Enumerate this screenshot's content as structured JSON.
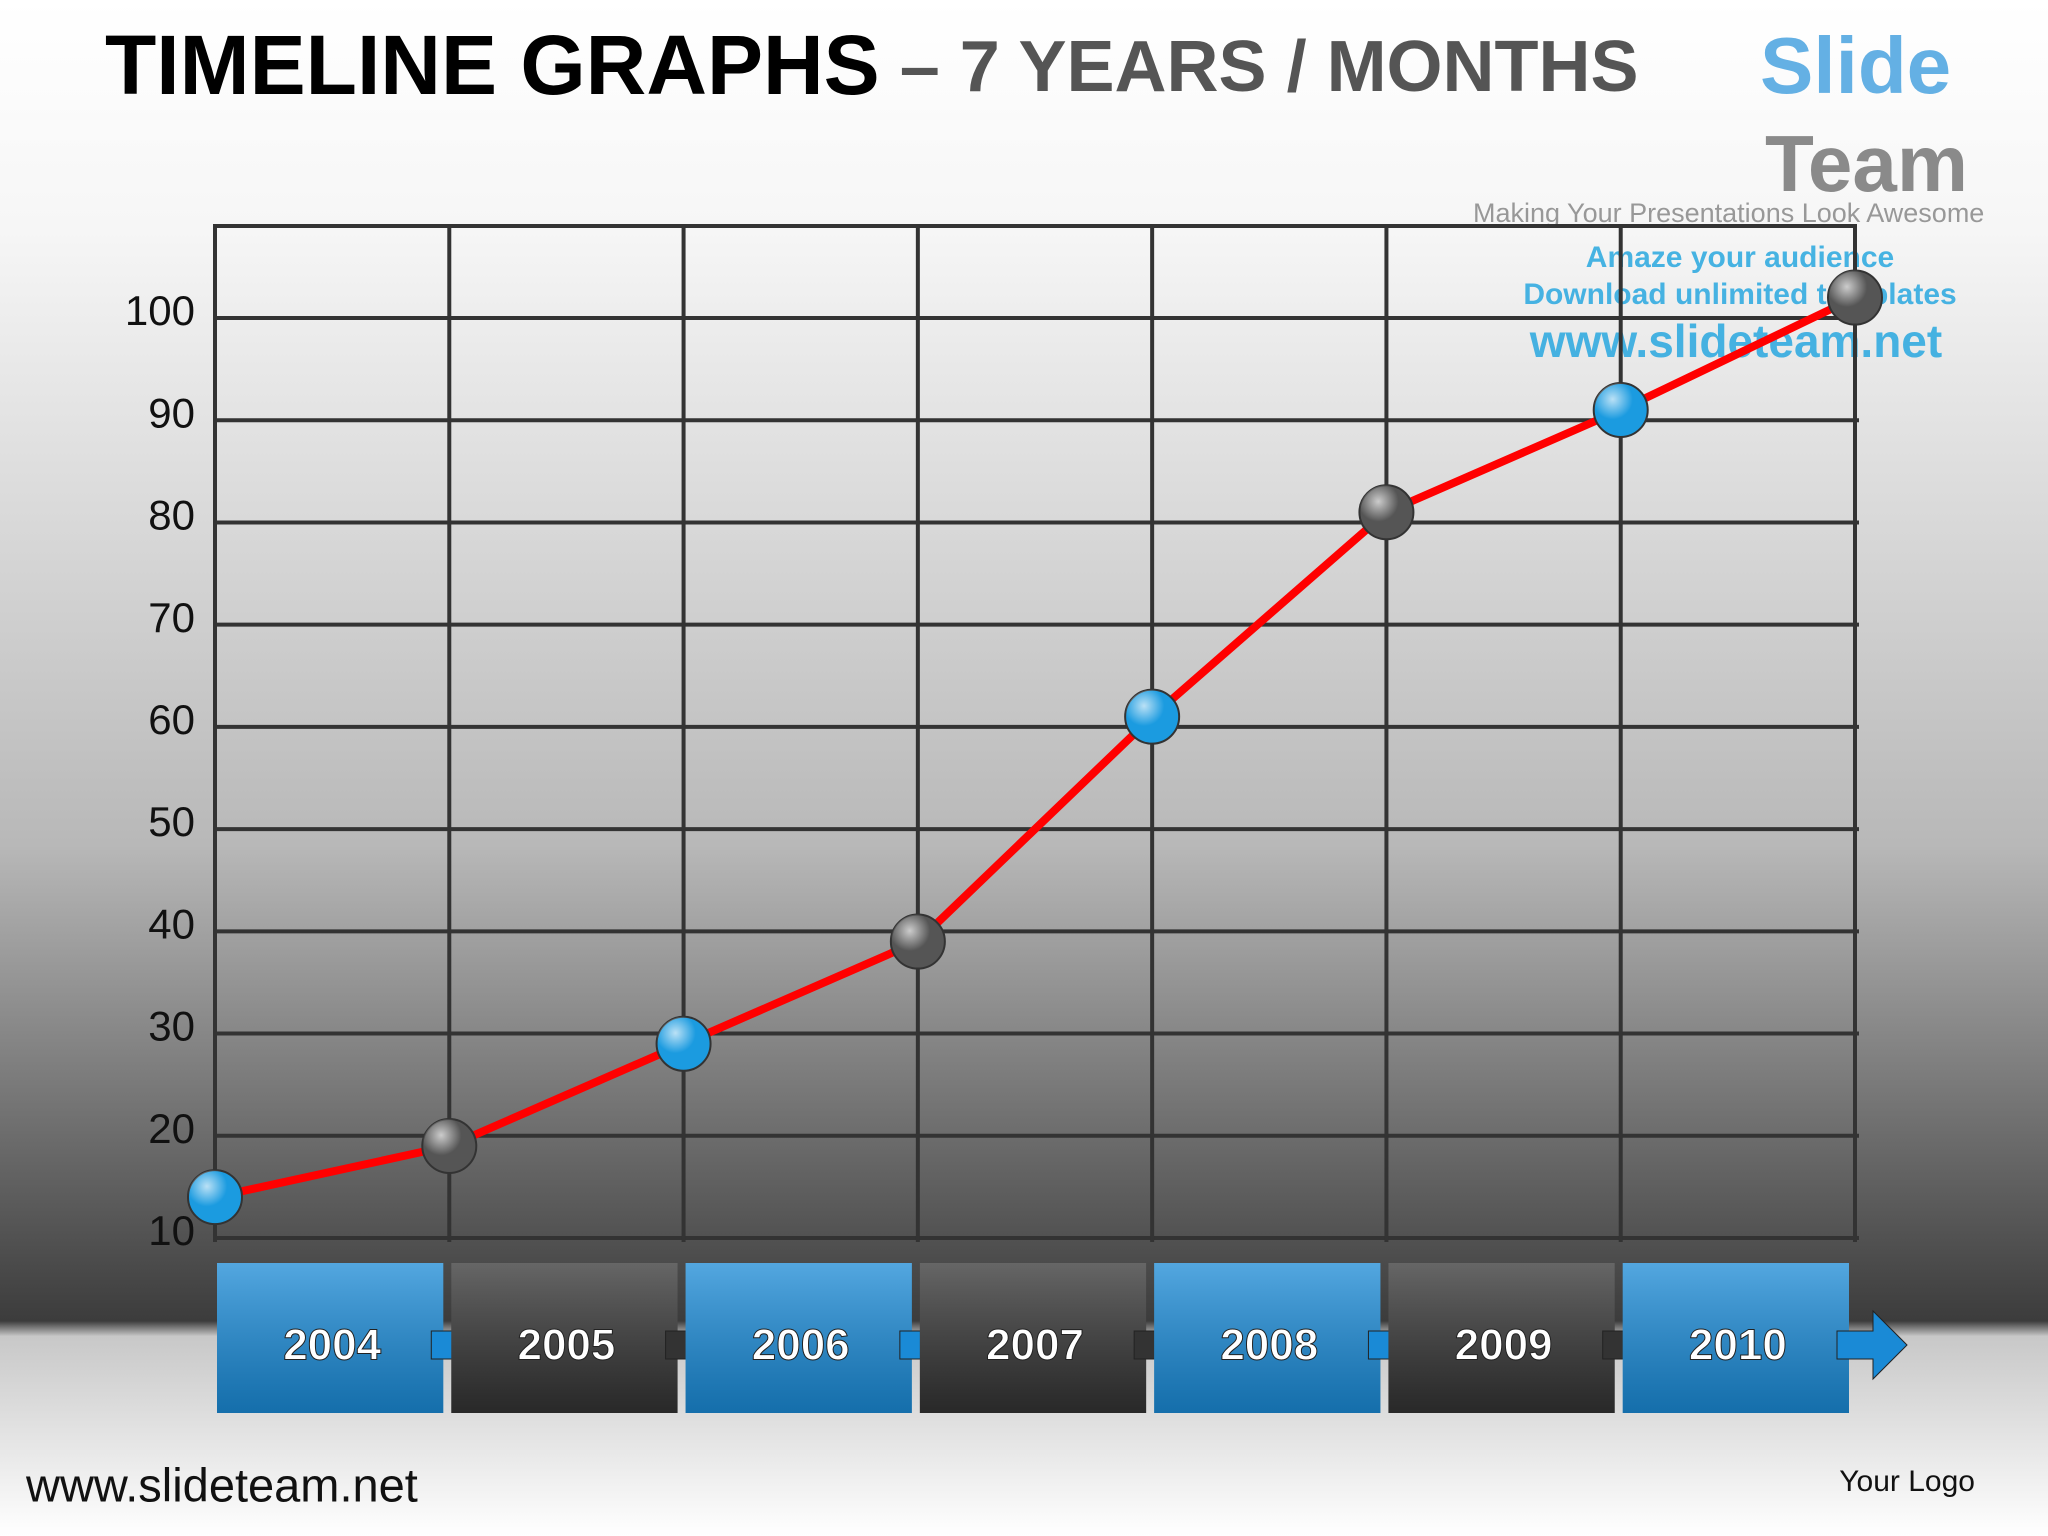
{
  "title_main": "TIMELINE  GRAPHS",
  "title_sub": "– 7 YEARS / MONTHS",
  "watermark": {
    "brand1": "Slide",
    "brand2": "Team",
    "tagline": "Making Your Presentations Look Awesome",
    "line1": "Amaze your audience",
    "line2": "Download unlimited templates",
    "url": "www.slideteam.net"
  },
  "footer": {
    "url": "www.slideteam.net",
    "logo": "Your Logo"
  },
  "chart_data": {
    "type": "line",
    "x": [
      0,
      1,
      2,
      3,
      4,
      5,
      6,
      7
    ],
    "xlim": [
      0,
      7
    ],
    "values": [
      14,
      19,
      29,
      39,
      61,
      81,
      91,
      102
    ],
    "color": "#ff0000",
    "marker_colors": [
      "#1b9be0",
      "#555555"
    ],
    "ylim": [
      10,
      109
    ],
    "yticks": [
      10,
      20,
      30,
      40,
      50,
      60,
      70,
      80,
      90,
      100
    ],
    "grid": true,
    "timeline": [
      "2004",
      "2005",
      "2006",
      "2007",
      "2008",
      "2009",
      "2010"
    ],
    "timeline_colors": [
      "#1a8ad6",
      "#333333"
    ]
  }
}
